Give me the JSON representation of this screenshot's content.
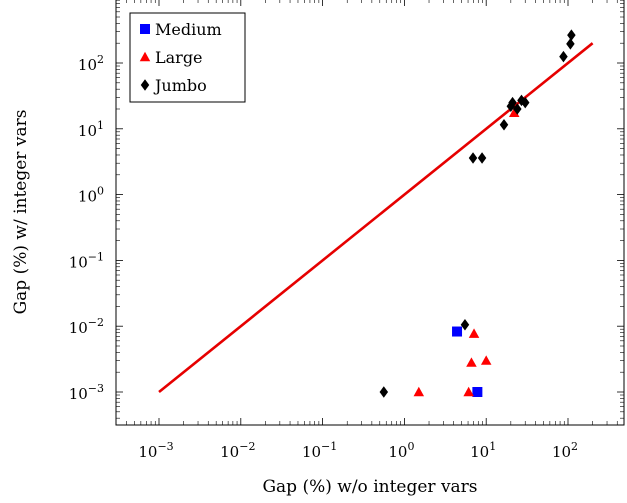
{
  "chart_data": {
    "type": "scatter",
    "xlabel": "Gap (%) w/o integer vars",
    "ylabel": "Gap (%) w/ integer vars",
    "xscale": "log",
    "yscale": "log",
    "xlim": [
      0.0002,
      500
    ],
    "ylim": [
      0.0002,
      1100
    ],
    "x_ticks": [
      {
        "value": 0.001,
        "mantissa": "10",
        "exp": "−3"
      },
      {
        "value": 0.01,
        "mantissa": "10",
        "exp": "−2"
      },
      {
        "value": 0.1,
        "mantissa": "10",
        "exp": "−1"
      },
      {
        "value": 1,
        "mantissa": "10",
        "exp": "0"
      },
      {
        "value": 10,
        "mantissa": "10",
        "exp": "1"
      },
      {
        "value": 100,
        "mantissa": "10",
        "exp": "2"
      }
    ],
    "y_ticks": [
      {
        "value": 0.001,
        "mantissa": "10",
        "exp": "−3"
      },
      {
        "value": 0.01,
        "mantissa": "10",
        "exp": "−2"
      },
      {
        "value": 0.1,
        "mantissa": "10",
        "exp": "−1"
      },
      {
        "value": 1,
        "mantissa": "10",
        "exp": "0"
      },
      {
        "value": 10,
        "mantissa": "10",
        "exp": "1"
      },
      {
        "value": 100,
        "mantissa": "10",
        "exp": "2"
      }
    ],
    "legend_position": "top-left",
    "series": [
      {
        "name": "Medium",
        "color": "#0000ff",
        "marker": "square",
        "points": [
          [
            4.4,
            0.0083
          ],
          [
            7.8,
            0.001
          ]
        ]
      },
      {
        "name": "Large",
        "color": "#ff0000",
        "marker": "triangle",
        "points": [
          [
            1.5,
            0.001
          ],
          [
            6.1,
            0.001
          ],
          [
            6.6,
            0.0028
          ],
          [
            7.1,
            0.0077
          ],
          [
            10,
            0.003
          ],
          [
            22,
            17.5
          ]
        ]
      },
      {
        "name": "Jumbo",
        "color": "#000000",
        "marker": "diamond",
        "points": [
          [
            0.56,
            0.001
          ],
          [
            5.5,
            0.0105
          ],
          [
            6.9,
            3.6
          ],
          [
            8.9,
            3.6
          ],
          [
            16.5,
            11.5
          ],
          [
            20,
            22
          ],
          [
            21,
            25
          ],
          [
            24,
            20
          ],
          [
            27,
            27
          ],
          [
            30,
            25
          ],
          [
            88,
            125
          ],
          [
            107,
            195
          ],
          [
            110,
            265
          ]
        ]
      }
    ],
    "reference_line": {
      "x": [
        0.001,
        200
      ],
      "y": [
        0.001,
        200
      ],
      "color": "#e60000"
    }
  }
}
